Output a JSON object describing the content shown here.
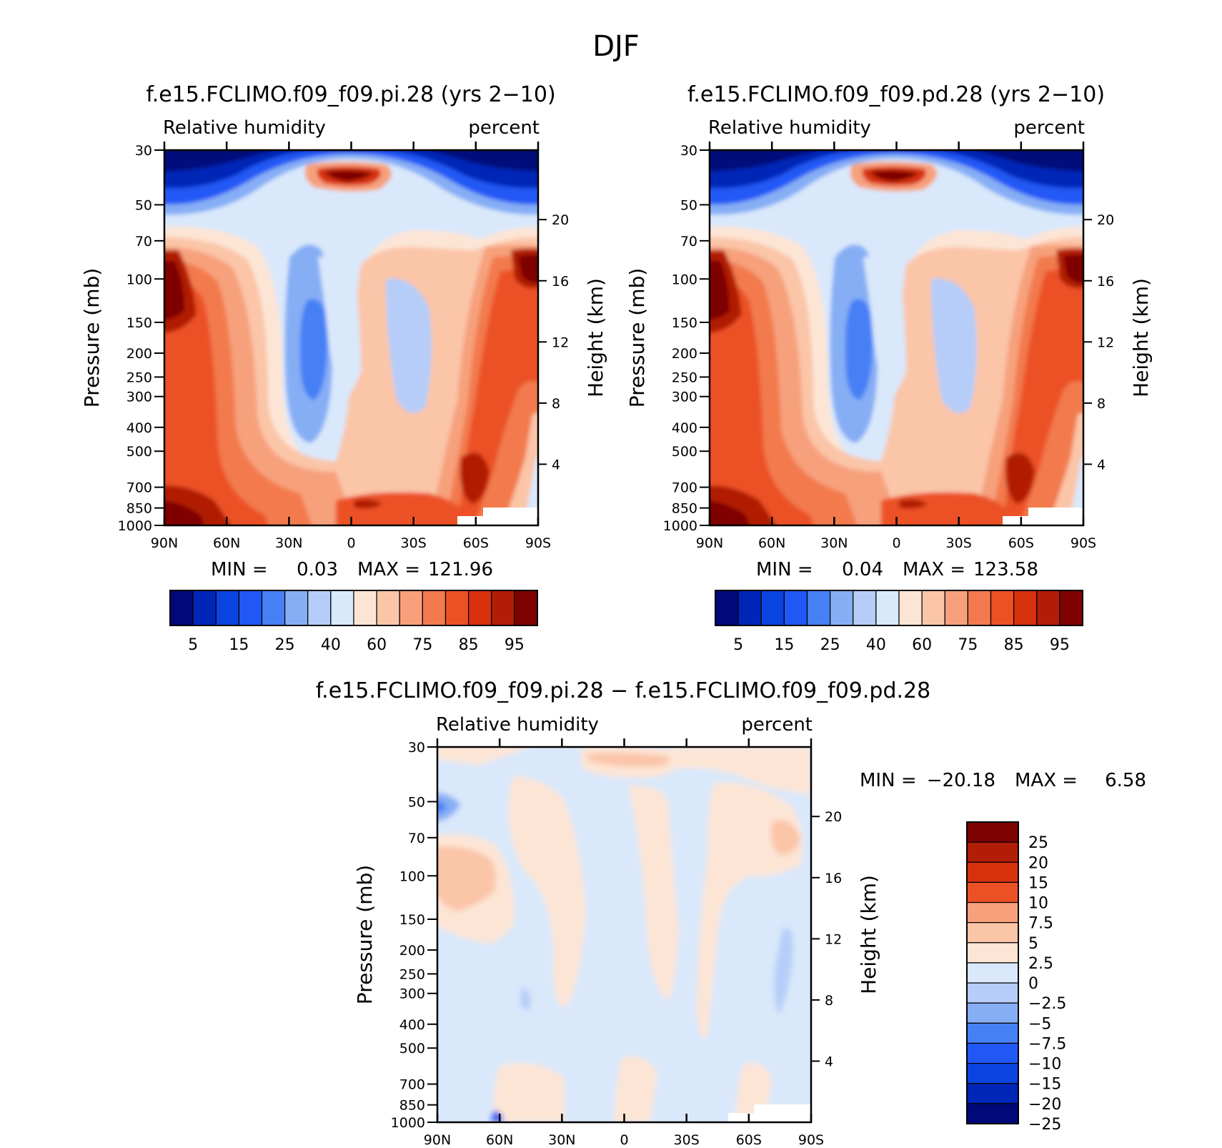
{
  "figure_title": "DJF",
  "chart_data": [
    {
      "id": "pi",
      "type": "heatmap",
      "title": "f.e15.FCLIMO.f09_f09.pi.28 (yrs 2−10)",
      "subtitle_left": "Relative humidity",
      "subtitle_right": "percent",
      "ylabel": "Pressure (mb)",
      "ylabel_right": "Height (km)",
      "x_ticks": [
        "90N",
        "60N",
        "30N",
        "0",
        "30S",
        "60S",
        "90S"
      ],
      "y_ticks": [
        "30",
        "50",
        "70",
        "100",
        "150",
        "200",
        "250",
        "300",
        "400",
        "500",
        "700",
        "850",
        "1000"
      ],
      "y_right_ticks": [
        "20",
        "16",
        "12",
        "8",
        "4"
      ],
      "min_label": "MIN =",
      "min_value": "0.03",
      "max_label": "MAX =",
      "max_value": "121.96",
      "colorbar_labels": [
        "5",
        "15",
        "25",
        "40",
        "60",
        "75",
        "85",
        "95"
      ],
      "colorbar_colors": [
        "#00087a",
        "#0026b8",
        "#0a44e0",
        "#2158f5",
        "#4680f5",
        "#86aef5",
        "#b5cdf8",
        "#d9e8fb",
        "#fde5d5",
        "#fbc5a8",
        "#f7a07b",
        "#f27a4e",
        "#ec5125",
        "#d7310e",
        "#b11d06",
        "#7e0202"
      ]
    },
    {
      "id": "pd",
      "type": "heatmap",
      "title": "f.e15.FCLIMO.f09_f09.pd.28 (yrs 2−10)",
      "subtitle_left": "Relative humidity",
      "subtitle_right": "percent",
      "ylabel": "Pressure (mb)",
      "ylabel_right": "Height (km)",
      "x_ticks": [
        "90N",
        "60N",
        "30N",
        "0",
        "30S",
        "60S",
        "90S"
      ],
      "y_ticks": [
        "30",
        "50",
        "70",
        "100",
        "150",
        "200",
        "250",
        "300",
        "400",
        "500",
        "700",
        "850",
        "1000"
      ],
      "y_right_ticks": [
        "20",
        "16",
        "12",
        "8",
        "4"
      ],
      "min_label": "MIN =",
      "min_value": "0.04",
      "max_label": "MAX =",
      "max_value": "123.58",
      "colorbar_labels": [
        "5",
        "15",
        "25",
        "40",
        "60",
        "75",
        "85",
        "95"
      ],
      "colorbar_colors": [
        "#00087a",
        "#0026b8",
        "#0a44e0",
        "#2158f5",
        "#4680f5",
        "#86aef5",
        "#b5cdf8",
        "#d9e8fb",
        "#fde5d5",
        "#fbc5a8",
        "#f7a07b",
        "#f27a4e",
        "#ec5125",
        "#d7310e",
        "#b11d06",
        "#7e0202"
      ]
    },
    {
      "id": "diff",
      "type": "heatmap",
      "title": "f.e15.FCLIMO.f09_f09.pi.28 − f.e15.FCLIMO.f09_f09.pd.28",
      "subtitle_left": "Relative humidity",
      "subtitle_right": "percent",
      "ylabel": "Pressure (mb)",
      "ylabel_right": "Height (km)",
      "x_ticks": [
        "90N",
        "60N",
        "30N",
        "0",
        "30S",
        "60S",
        "90S"
      ],
      "y_ticks": [
        "30",
        "50",
        "70",
        "100",
        "150",
        "200",
        "250",
        "300",
        "400",
        "500",
        "700",
        "850",
        "1000"
      ],
      "y_right_ticks": [
        "20",
        "16",
        "12",
        "8",
        "4"
      ],
      "min_label": "MIN =",
      "min_value": "−20.18",
      "max_label": "MAX =",
      "max_value": "6.58",
      "colorbar_labels": [
        "25",
        "20",
        "15",
        "10",
        "7.5",
        "5",
        "2.5",
        "0",
        "−2.5",
        "−5",
        "−7.5",
        "−10",
        "−15",
        "−20",
        "−25"
      ],
      "colorbar_colors": [
        "#7e0202",
        "#b11d06",
        "#d7310e",
        "#ec5125",
        "#f7a07b",
        "#fbc5a8",
        "#fde5d5",
        "#d9e8fb",
        "#b5cdf8",
        "#86aef5",
        "#4680f5",
        "#2158f5",
        "#0a44e0",
        "#0026b8",
        "#00087a"
      ]
    }
  ]
}
